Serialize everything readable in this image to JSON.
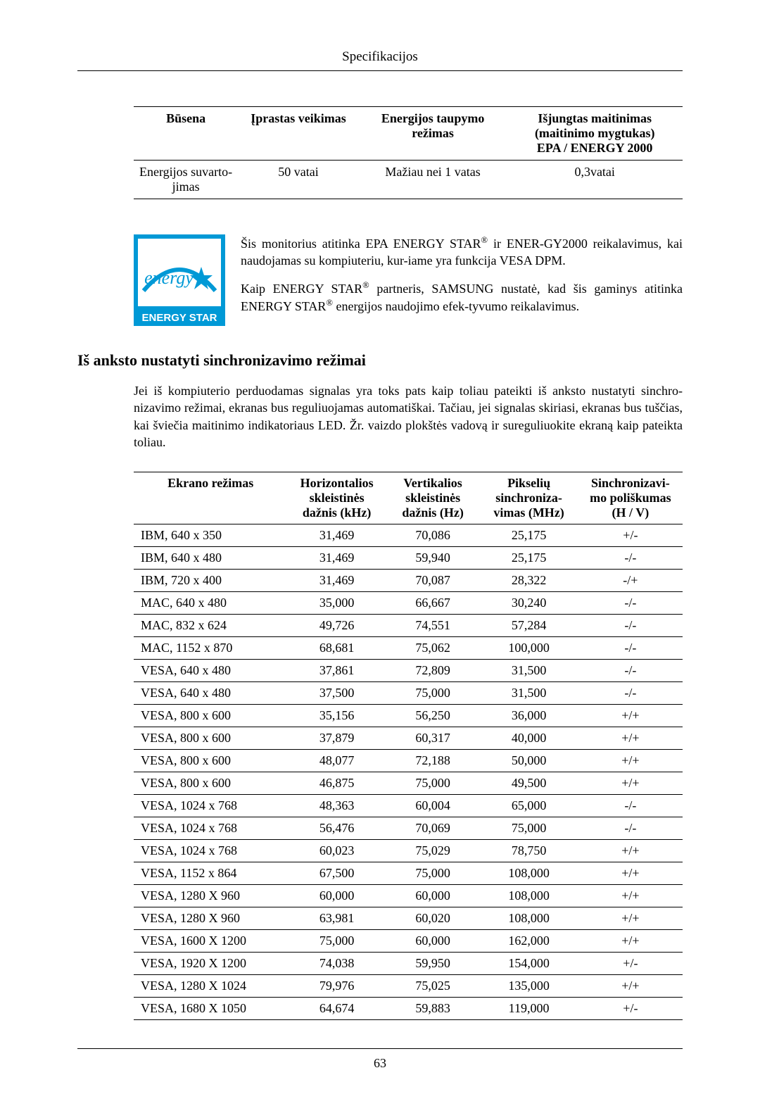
{
  "page": {
    "header_title": "Specifikacijos",
    "page_number": "63"
  },
  "table1": {
    "headers": {
      "c1": "Būsena",
      "c2": "Įprastas veikimas",
      "c3_l1": "Energijos taupymo",
      "c3_l2": "režimas",
      "c4_l1": "Išjungtas maitinimas",
      "c4_l2": "(maitinimo mygtukas)",
      "c4_l3": "EPA / ENERGY 2000"
    },
    "row": {
      "c1_l1": "Energijos suvarto-",
      "c1_l2": "jimas",
      "c2": "50 vatai",
      "c3": "Mažiau nei 1 vatas",
      "c4": "0,3vatai"
    }
  },
  "energy_star": {
    "p1_a": "Šis monitorius atitinka EPA ENERGY STAR",
    "p1_b": " ir ENER-GY2000 reikalavimus, kai naudojamas su kompiuteriu, kur-iame yra funkcija VESA DPM.",
    "p2_a": "Kaip ENERGY STAR",
    "p2_b": " partneris, SAMSUNG nustatė, kad šis gaminys atitinka ENERGY STAR",
    "p2_c": " energijos naudojimo efek-tyvumo reikalavimus.",
    "reg": "®",
    "logo_text_top": "energy",
    "logo_text_bottom": "ENERGY STAR",
    "logo_colors": {
      "fill": "#0099d6",
      "bg": "#ffffff"
    }
  },
  "section2": {
    "heading": "Iš anksto nustatyti sinchronizavimo režimai",
    "paragraph": "Jei iš kompiuterio perduodamas signalas yra toks pats kaip toliau pateikti iš anksto nustatyti sinchro-nizavimo režimai, ekranas bus reguliuojamas automatiškai. Tačiau, jei signalas skiriasi, ekranas bus tuščias, kai šviečia maitinimo indikatoriaus LED. Žr. vaizdo plokštės vadovą ir sureguliuokite ekraną kaip pateikta toliau."
  },
  "table2": {
    "headers": {
      "c1": "Ekrano režimas",
      "c2_l1": "Horizontalios",
      "c2_l2": "skleistinės",
      "c2_l3": "dažnis (kHz)",
      "c3_l1": "Vertikalios",
      "c3_l2": "skleistinės",
      "c3_l3": "dažnis (Hz)",
      "c4_l1": "Pikselių",
      "c4_l2": "sinchroniza-",
      "c4_l3": "vimas (MHz)",
      "c5_l1": "Sinchronizavi-",
      "c5_l2": "mo poliškumas",
      "c5_l3": "(H / V)"
    },
    "rows": [
      {
        "mode": "IBM, 640 x 350",
        "h": "31,469",
        "v": "70,086",
        "p": "25,175",
        "s": "+/-"
      },
      {
        "mode": "IBM, 640 x 480",
        "h": "31,469",
        "v": "59,940",
        "p": "25,175",
        "s": "-/-"
      },
      {
        "mode": "IBM, 720 x 400",
        "h": "31,469",
        "v": "70,087",
        "p": "28,322",
        "s": "-/+"
      },
      {
        "mode": "MAC, 640 x 480",
        "h": "35,000",
        "v": "66,667",
        "p": "30,240",
        "s": "-/-"
      },
      {
        "mode": "MAC, 832 x 624",
        "h": "49,726",
        "v": "74,551",
        "p": "57,284",
        "s": "-/-"
      },
      {
        "mode": "MAC, 1152 x 870",
        "h": "68,681",
        "v": "75,062",
        "p": "100,000",
        "s": "-/-"
      },
      {
        "mode": "VESA, 640 x 480",
        "h": "37,861",
        "v": "72,809",
        "p": "31,500",
        "s": "-/-"
      },
      {
        "mode": "VESA, 640 x 480",
        "h": "37,500",
        "v": "75,000",
        "p": "31,500",
        "s": "-/-"
      },
      {
        "mode": "VESA, 800 x 600",
        "h": "35,156",
        "v": "56,250",
        "p": "36,000",
        "s": "+/+"
      },
      {
        "mode": "VESA, 800 x 600",
        "h": "37,879",
        "v": "60,317",
        "p": "40,000",
        "s": "+/+"
      },
      {
        "mode": "VESA, 800 x 600",
        "h": "48,077",
        "v": "72,188",
        "p": "50,000",
        "s": "+/+"
      },
      {
        "mode": "VESA, 800 x 600",
        "h": "46,875",
        "v": "75,000",
        "p": "49,500",
        "s": "+/+"
      },
      {
        "mode": "VESA, 1024 x 768",
        "h": "48,363",
        "v": "60,004",
        "p": "65,000",
        "s": "-/-"
      },
      {
        "mode": "VESA, 1024 x 768",
        "h": "56,476",
        "v": "70,069",
        "p": "75,000",
        "s": "-/-"
      },
      {
        "mode": "VESA, 1024 x 768",
        "h": "60,023",
        "v": "75,029",
        "p": "78,750",
        "s": "+/+"
      },
      {
        "mode": "VESA, 1152 x 864",
        "h": "67,500",
        "v": "75,000",
        "p": "108,000",
        "s": "+/+"
      },
      {
        "mode": "VESA, 1280 X 960",
        "h": "60,000",
        "v": "60,000",
        "p": "108,000",
        "s": "+/+"
      },
      {
        "mode": "VESA, 1280 X 960",
        "h": "63,981",
        "v": "60,020",
        "p": "108,000",
        "s": "+/+"
      },
      {
        "mode": "VESA, 1600 X 1200",
        "h": "75,000",
        "v": "60,000",
        "p": "162,000",
        "s": "+/+"
      },
      {
        "mode": "VESA, 1920 X 1200",
        "h": "74,038",
        "v": "59,950",
        "p": "154,000",
        "s": "+/-"
      },
      {
        "mode": "VESA, 1280 X 1024",
        "h": "79,976",
        "v": "75,025",
        "p": "135,000",
        "s": "+/+"
      },
      {
        "mode": "VESA, 1680 X 1050",
        "h": "64,674",
        "v": "59,883",
        "p": "119,000",
        "s": "+/-"
      }
    ]
  }
}
